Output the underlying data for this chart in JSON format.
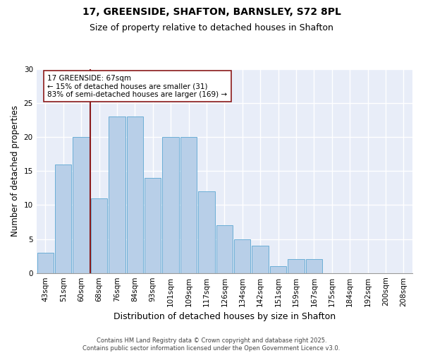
{
  "title1": "17, GREENSIDE, SHAFTON, BARNSLEY, S72 8PL",
  "title2": "Size of property relative to detached houses in Shafton",
  "xlabel": "Distribution of detached houses by size in Shafton",
  "ylabel": "Number of detached properties",
  "categories": [
    "43sqm",
    "51sqm",
    "60sqm",
    "68sqm",
    "76sqm",
    "84sqm",
    "93sqm",
    "101sqm",
    "109sqm",
    "117sqm",
    "126sqm",
    "134sqm",
    "142sqm",
    "151sqm",
    "159sqm",
    "167sqm",
    "175sqm",
    "184sqm",
    "192sqm",
    "200sqm",
    "208sqm"
  ],
  "values": [
    3,
    16,
    20,
    11,
    23,
    23,
    14,
    20,
    20,
    12,
    7,
    5,
    4,
    1,
    2,
    2,
    0,
    0,
    0,
    0,
    0
  ],
  "bar_color": "#b8cfe8",
  "bar_edge_color": "#6baed6",
  "vline_color": "#8b1a1a",
  "vline_x": 2.5,
  "annotation_text": "17 GREENSIDE: 67sqm\n← 15% of detached houses are smaller (31)\n83% of semi-detached houses are larger (169) →",
  "annotation_box_facecolor": "white",
  "annotation_box_edgecolor": "#8b1a1a",
  "ylim": [
    0,
    30
  ],
  "yticks": [
    0,
    5,
    10,
    15,
    20,
    25,
    30
  ],
  "background_color": "#e8edf8",
  "grid_color": "white",
  "footer": "Contains HM Land Registry data © Crown copyright and database right 2025.\nContains public sector information licensed under the Open Government Licence v3.0.",
  "title_fontsize": 10,
  "subtitle_fontsize": 9,
  "tick_fontsize": 7.5,
  "ylabel_fontsize": 8.5,
  "xlabel_fontsize": 9,
  "footer_fontsize": 6,
  "annot_fontsize": 7.5
}
